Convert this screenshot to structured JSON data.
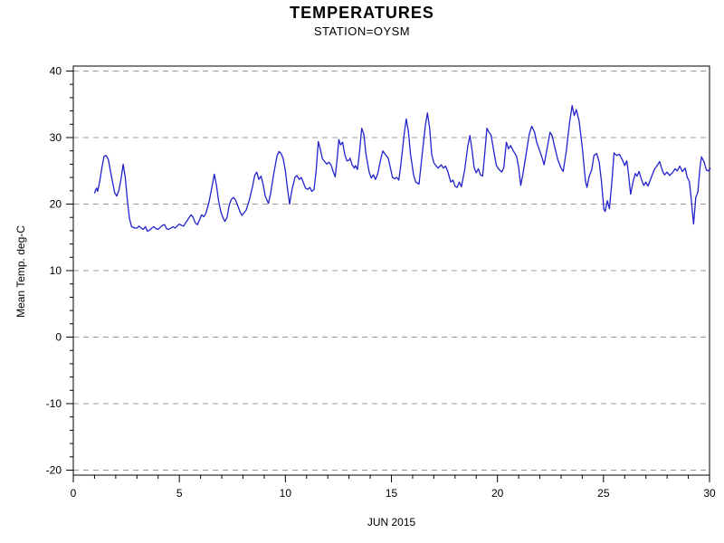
{
  "page": {
    "background": "#ffffff"
  },
  "header": {
    "title": "TEMPERATURES",
    "subtitle": "STATION=OYSM"
  },
  "chart_data": {
    "type": "line",
    "title": "TEMPERATURES",
    "subtitle": "STATION=OYSM",
    "xlabel": "JUN 2015",
    "ylabel": "Mean Temp. deg-C",
    "xlim": [
      0,
      30
    ],
    "ylim": [
      -20,
      40
    ],
    "x_major_ticks": [
      0,
      5,
      10,
      15,
      20,
      25,
      30
    ],
    "x_minor_step": 1,
    "y_major_ticks": [
      -20,
      -10,
      0,
      10,
      20,
      30,
      40
    ],
    "y_minor_step": 2,
    "grid": "horizontal-dashed",
    "legend": "none",
    "line_color": "#2222cc",
    "grid_color": "#999999",
    "axis_color": "#000000",
    "series": [
      {
        "name": "Mean Temp",
        "points": [
          [
            1.0,
            21.6
          ],
          [
            1.05,
            22.1
          ],
          [
            1.1,
            22.4
          ],
          [
            1.15,
            21.9
          ],
          [
            1.25,
            23.5
          ],
          [
            1.35,
            25.5
          ],
          [
            1.45,
            27.2
          ],
          [
            1.55,
            27.3
          ],
          [
            1.65,
            26.7
          ],
          [
            1.75,
            25.0
          ],
          [
            1.85,
            23.3
          ],
          [
            1.95,
            21.7
          ],
          [
            2.05,
            21.2
          ],
          [
            2.15,
            22.1
          ],
          [
            2.25,
            23.7
          ],
          [
            2.35,
            26.0
          ],
          [
            2.45,
            24.0
          ],
          [
            2.55,
            20.5
          ],
          [
            2.65,
            17.8
          ],
          [
            2.75,
            16.6
          ],
          [
            2.9,
            16.4
          ],
          [
            3.0,
            16.4
          ],
          [
            3.1,
            16.7
          ],
          [
            3.2,
            16.4
          ],
          [
            3.3,
            16.2
          ],
          [
            3.4,
            16.6
          ],
          [
            3.5,
            15.9
          ],
          [
            3.6,
            16.1
          ],
          [
            3.7,
            16.4
          ],
          [
            3.8,
            16.6
          ],
          [
            3.9,
            16.3
          ],
          [
            4.0,
            16.2
          ],
          [
            4.1,
            16.5
          ],
          [
            4.2,
            16.8
          ],
          [
            4.3,
            16.9
          ],
          [
            4.4,
            16.3
          ],
          [
            4.5,
            16.2
          ],
          [
            4.6,
            16.4
          ],
          [
            4.7,
            16.6
          ],
          [
            4.8,
            16.4
          ],
          [
            4.9,
            16.7
          ],
          [
            5.0,
            17.0
          ],
          [
            5.1,
            16.8
          ],
          [
            5.2,
            16.7
          ],
          [
            5.3,
            17.2
          ],
          [
            5.45,
            17.9
          ],
          [
            5.55,
            18.4
          ],
          [
            5.65,
            18.0
          ],
          [
            5.75,
            17.2
          ],
          [
            5.85,
            16.9
          ],
          [
            5.95,
            17.6
          ],
          [
            6.05,
            18.4
          ],
          [
            6.15,
            18.1
          ],
          [
            6.25,
            18.6
          ],
          [
            6.4,
            20.3
          ],
          [
            6.55,
            22.8
          ],
          [
            6.65,
            24.5
          ],
          [
            6.75,
            22.8
          ],
          [
            6.85,
            20.5
          ],
          [
            6.95,
            18.9
          ],
          [
            7.05,
            18.0
          ],
          [
            7.15,
            17.4
          ],
          [
            7.25,
            18.0
          ],
          [
            7.35,
            19.8
          ],
          [
            7.45,
            20.7
          ],
          [
            7.55,
            21.0
          ],
          [
            7.65,
            20.6
          ],
          [
            7.75,
            19.8
          ],
          [
            7.85,
            18.9
          ],
          [
            7.95,
            18.3
          ],
          [
            8.05,
            18.7
          ],
          [
            8.15,
            19.1
          ],
          [
            8.3,
            20.6
          ],
          [
            8.45,
            22.6
          ],
          [
            8.55,
            24.3
          ],
          [
            8.65,
            24.8
          ],
          [
            8.75,
            23.7
          ],
          [
            8.85,
            24.2
          ],
          [
            8.95,
            23.0
          ],
          [
            9.05,
            21.2
          ],
          [
            9.2,
            20.1
          ],
          [
            9.3,
            21.5
          ],
          [
            9.45,
            24.5
          ],
          [
            9.6,
            27.2
          ],
          [
            9.7,
            27.9
          ],
          [
            9.8,
            27.6
          ],
          [
            9.9,
            26.8
          ],
          [
            10.0,
            25.0
          ],
          [
            10.1,
            22.3
          ],
          [
            10.2,
            20.0
          ],
          [
            10.3,
            22.0
          ],
          [
            10.45,
            24.0
          ],
          [
            10.55,
            24.3
          ],
          [
            10.65,
            23.7
          ],
          [
            10.75,
            24.0
          ],
          [
            10.85,
            23.2
          ],
          [
            10.95,
            22.4
          ],
          [
            11.05,
            22.2
          ],
          [
            11.15,
            22.5
          ],
          [
            11.25,
            21.9
          ],
          [
            11.35,
            22.2
          ],
          [
            11.45,
            25.0
          ],
          [
            11.55,
            29.4
          ],
          [
            11.65,
            28.2
          ],
          [
            11.75,
            26.8
          ],
          [
            11.85,
            26.4
          ],
          [
            11.95,
            26.0
          ],
          [
            12.05,
            26.3
          ],
          [
            12.15,
            25.9
          ],
          [
            12.25,
            24.9
          ],
          [
            12.35,
            24.1
          ],
          [
            12.45,
            27.0
          ],
          [
            12.52,
            29.7
          ],
          [
            12.6,
            28.9
          ],
          [
            12.7,
            29.3
          ],
          [
            12.8,
            27.5
          ],
          [
            12.9,
            26.5
          ],
          [
            13.0,
            26.6
          ],
          [
            13.05,
            26.9
          ],
          [
            13.15,
            25.9
          ],
          [
            13.25,
            25.4
          ],
          [
            13.3,
            25.8
          ],
          [
            13.4,
            25.2
          ],
          [
            13.5,
            28.0
          ],
          [
            13.6,
            31.4
          ],
          [
            13.7,
            30.5
          ],
          [
            13.8,
            27.5
          ],
          [
            13.95,
            24.8
          ],
          [
            14.05,
            23.9
          ],
          [
            14.15,
            24.4
          ],
          [
            14.25,
            23.7
          ],
          [
            14.35,
            24.5
          ],
          [
            14.5,
            26.8
          ],
          [
            14.6,
            28.0
          ],
          [
            14.7,
            27.5
          ],
          [
            14.85,
            26.9
          ],
          [
            14.95,
            25.5
          ],
          [
            15.05,
            24.0
          ],
          [
            15.15,
            23.8
          ],
          [
            15.25,
            24.0
          ],
          [
            15.35,
            23.6
          ],
          [
            15.45,
            26.0
          ],
          [
            15.6,
            30.5
          ],
          [
            15.7,
            32.8
          ],
          [
            15.8,
            31.0
          ],
          [
            15.9,
            27.5
          ],
          [
            16.05,
            24.3
          ],
          [
            16.15,
            23.3
          ],
          [
            16.3,
            23.0
          ],
          [
            16.45,
            27.5
          ],
          [
            16.6,
            31.8
          ],
          [
            16.7,
            33.7
          ],
          [
            16.8,
            31.5
          ],
          [
            16.9,
            27.5
          ],
          [
            17.0,
            26.2
          ],
          [
            17.1,
            25.8
          ],
          [
            17.2,
            25.4
          ],
          [
            17.35,
            25.9
          ],
          [
            17.45,
            25.4
          ],
          [
            17.55,
            25.7
          ],
          [
            17.65,
            25.0
          ],
          [
            17.8,
            23.3
          ],
          [
            17.9,
            23.6
          ],
          [
            18.0,
            22.7
          ],
          [
            18.1,
            22.5
          ],
          [
            18.2,
            23.3
          ],
          [
            18.3,
            22.6
          ],
          [
            18.45,
            25.0
          ],
          [
            18.6,
            28.7
          ],
          [
            18.7,
            30.3
          ],
          [
            18.8,
            28.2
          ],
          [
            18.9,
            25.5
          ],
          [
            19.0,
            24.7
          ],
          [
            19.1,
            25.3
          ],
          [
            19.2,
            24.4
          ],
          [
            19.3,
            24.2
          ],
          [
            19.4,
            27.5
          ],
          [
            19.5,
            31.4
          ],
          [
            19.6,
            30.8
          ],
          [
            19.7,
            30.4
          ],
          [
            19.85,
            27.5
          ],
          [
            19.95,
            25.8
          ],
          [
            20.05,
            25.3
          ],
          [
            20.2,
            24.8
          ],
          [
            20.3,
            25.5
          ],
          [
            20.42,
            29.3
          ],
          [
            20.52,
            28.3
          ],
          [
            20.62,
            28.8
          ],
          [
            20.75,
            28.0
          ],
          [
            20.9,
            27.2
          ],
          [
            21.0,
            25.5
          ],
          [
            21.1,
            22.8
          ],
          [
            21.2,
            24.5
          ],
          [
            21.35,
            27.5
          ],
          [
            21.5,
            30.5
          ],
          [
            21.62,
            31.7
          ],
          [
            21.75,
            30.8
          ],
          [
            21.85,
            29.3
          ],
          [
            21.95,
            28.4
          ],
          [
            22.1,
            27.0
          ],
          [
            22.2,
            25.9
          ],
          [
            22.35,
            28.5
          ],
          [
            22.48,
            30.8
          ],
          [
            22.58,
            30.3
          ],
          [
            22.7,
            28.6
          ],
          [
            22.85,
            26.6
          ],
          [
            23.0,
            25.4
          ],
          [
            23.1,
            24.9
          ],
          [
            23.25,
            28.0
          ],
          [
            23.4,
            32.2
          ],
          [
            23.52,
            34.8
          ],
          [
            23.62,
            33.3
          ],
          [
            23.72,
            34.2
          ],
          [
            23.85,
            32.5
          ],
          [
            24.0,
            28.5
          ],
          [
            24.15,
            23.5
          ],
          [
            24.22,
            22.5
          ],
          [
            24.32,
            24.1
          ],
          [
            24.45,
            25.2
          ],
          [
            24.55,
            27.3
          ],
          [
            24.68,
            27.6
          ],
          [
            24.8,
            26.3
          ],
          [
            24.9,
            23.5
          ],
          [
            25.02,
            19.2
          ],
          [
            25.08,
            18.9
          ],
          [
            25.18,
            20.5
          ],
          [
            25.28,
            19.3
          ],
          [
            25.4,
            23.5
          ],
          [
            25.5,
            27.7
          ],
          [
            25.62,
            27.3
          ],
          [
            25.75,
            27.5
          ],
          [
            25.9,
            26.6
          ],
          [
            26.0,
            25.8
          ],
          [
            26.1,
            26.5
          ],
          [
            26.18,
            24.5
          ],
          [
            26.28,
            21.5
          ],
          [
            26.4,
            23.4
          ],
          [
            26.5,
            24.6
          ],
          [
            26.58,
            24.2
          ],
          [
            26.68,
            24.9
          ],
          [
            26.8,
            23.6
          ],
          [
            26.9,
            22.8
          ],
          [
            27.0,
            23.3
          ],
          [
            27.1,
            22.7
          ],
          [
            27.25,
            24.0
          ],
          [
            27.4,
            25.2
          ],
          [
            27.55,
            25.9
          ],
          [
            27.65,
            26.4
          ],
          [
            27.78,
            25.0
          ],
          [
            27.88,
            24.4
          ],
          [
            28.0,
            24.8
          ],
          [
            28.12,
            24.3
          ],
          [
            28.25,
            24.7
          ],
          [
            28.38,
            25.3
          ],
          [
            28.48,
            25.0
          ],
          [
            28.6,
            25.7
          ],
          [
            28.72,
            24.9
          ],
          [
            28.85,
            25.4
          ],
          [
            28.95,
            24.0
          ],
          [
            29.05,
            23.4
          ],
          [
            29.12,
            21.3
          ],
          [
            29.25,
            17.0
          ],
          [
            29.35,
            21.0
          ],
          [
            29.45,
            21.8
          ],
          [
            29.55,
            25.5
          ],
          [
            29.62,
            27.1
          ],
          [
            29.75,
            26.3
          ],
          [
            29.85,
            25.1
          ],
          [
            29.95,
            25.0
          ],
          [
            30.05,
            25.4
          ]
        ]
      }
    ]
  }
}
